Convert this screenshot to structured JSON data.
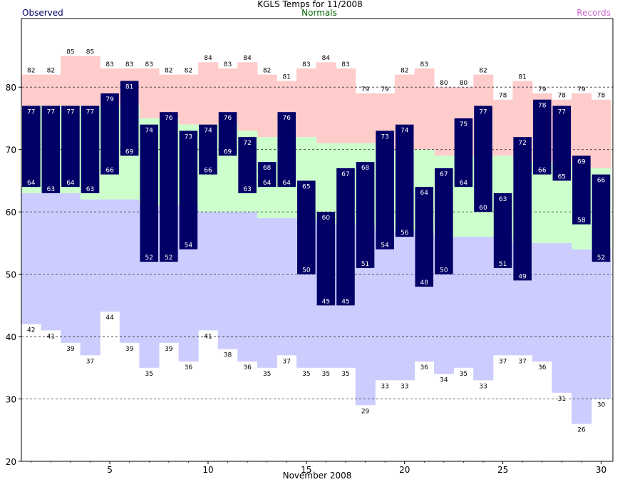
{
  "chart_data": {
    "type": "bar",
    "title": "KGLS Temps for 11/2008",
    "legend": {
      "observed": "Observed",
      "normals": "Normals",
      "records": "Records"
    },
    "xlabel": "November 2008",
    "ylim": [
      20,
      91
    ],
    "xlim": [
      0.5,
      30.6
    ],
    "yticks": [
      20,
      30,
      40,
      50,
      60,
      70,
      80
    ],
    "xticks": [
      5,
      10,
      15,
      20,
      25,
      30
    ],
    "gridlines": [
      30,
      40,
      50,
      60,
      70,
      80
    ],
    "days": [
      1,
      2,
      3,
      4,
      5,
      6,
      7,
      8,
      9,
      10,
      11,
      12,
      13,
      14,
      15,
      16,
      17,
      18,
      19,
      20,
      21,
      22,
      23,
      24,
      25,
      26,
      27,
      28,
      29,
      30
    ],
    "series": [
      {
        "name": "Observed",
        "high": [
          77,
          77,
          77,
          77,
          79,
          81,
          74,
          76,
          73,
          74,
          76,
          72,
          68,
          76,
          65,
          60,
          67,
          68,
          73,
          74,
          64,
          67,
          75,
          77,
          63,
          72,
          78,
          77,
          69,
          66
        ],
        "low": [
          64,
          63,
          64,
          63,
          66,
          69,
          52,
          52,
          54,
          66,
          69,
          63,
          64,
          64,
          50,
          45,
          45,
          51,
          54,
          56,
          48,
          50,
          64,
          60,
          51,
          49,
          66,
          65,
          58,
          52
        ]
      },
      {
        "name": "Normals",
        "high": [
          77,
          77,
          77,
          77,
          77,
          77,
          75,
          75,
          74,
          74,
          74,
          73,
          72,
          72,
          72,
          71,
          71,
          71,
          70,
          70,
          70,
          69,
          69,
          69,
          69,
          68,
          68,
          68,
          67,
          67
        ],
        "low": [
          63,
          63,
          63,
          62,
          62,
          62,
          61,
          61,
          61,
          60,
          60,
          60,
          59,
          59,
          59,
          58,
          58,
          58,
          57,
          57,
          57,
          56,
          56,
          56,
          56,
          55,
          55,
          55,
          54,
          54
        ]
      },
      {
        "name": "Records",
        "high": [
          82,
          82,
          85,
          85,
          83,
          83,
          83,
          82,
          82,
          84,
          83,
          84,
          82,
          81,
          83,
          84,
          83,
          79,
          79,
          82,
          83,
          80,
          80,
          82,
          78,
          81,
          79,
          78,
          79,
          78
        ],
        "low": [
          42,
          41,
          39,
          37,
          44,
          39,
          35,
          39,
          36,
          41,
          38,
          36,
          35,
          37,
          35,
          35,
          35,
          29,
          33,
          33,
          36,
          34,
          35,
          33,
          37,
          37,
          36,
          31,
          26,
          30
        ]
      }
    ],
    "colors": {
      "observed": "#000066",
      "normals": "#ccffcc",
      "record_high": "#ffcccc",
      "record_low": "#ccccff",
      "label_dark": "#000000",
      "label_light": "#ffffff"
    }
  }
}
